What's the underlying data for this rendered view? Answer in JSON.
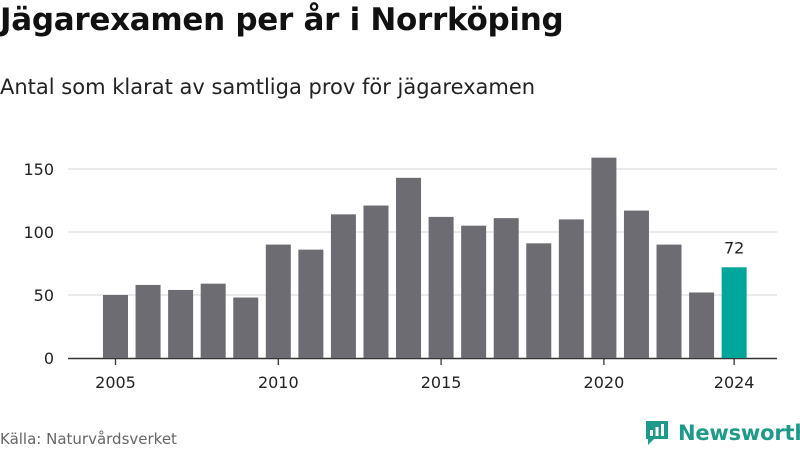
{
  "title": "Jägarexamen per år i Norrköping",
  "subtitle": "Antal som klarat av samtliga prov för jägarexamen",
  "source": "Källa: Naturvårdsverket",
  "brand": {
    "name": "Newsworthy",
    "color": "#1d9a8a",
    "icon": "newsworthy-logo-icon"
  },
  "colors": {
    "bar": "#6d6c72",
    "highlight": "#00a699",
    "grid": "#dddddd",
    "axis": "#333333"
  },
  "chart_data": {
    "type": "bar",
    "x": [
      2005,
      2006,
      2007,
      2008,
      2009,
      2010,
      2011,
      2012,
      2013,
      2014,
      2015,
      2016,
      2017,
      2018,
      2019,
      2020,
      2021,
      2022,
      2023,
      2024
    ],
    "values": [
      50,
      58,
      54,
      59,
      48,
      90,
      86,
      114,
      121,
      143,
      112,
      105,
      111,
      91,
      110,
      159,
      117,
      90,
      52,
      72
    ],
    "x_ticks": [
      "2005",
      "2010",
      "2015",
      "2020",
      "2024"
    ],
    "y_ticks": [
      0,
      50,
      100,
      150
    ],
    "ylim": [
      0,
      165
    ],
    "grid": true,
    "highlight": {
      "x": 2024,
      "label": "72"
    }
  }
}
